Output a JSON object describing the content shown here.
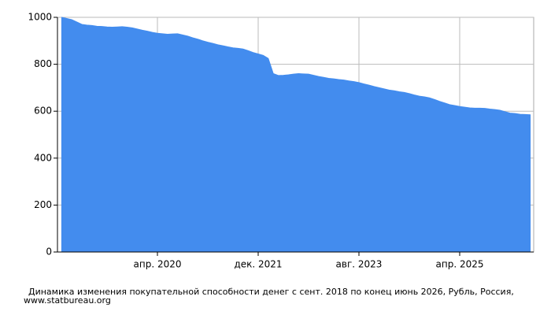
{
  "chart_data": {
    "type": "area",
    "caption": "Динамика изменения покупательной способности денег с сент. 2018 по конец июнь 2026, Рубль, Россия,",
    "source": "www.statbureau.org",
    "color": "#438cee",
    "grid": true,
    "categories": [
      null,
      null,
      null,
      null,
      null,
      null,
      null,
      null,
      null,
      null,
      null,
      null,
      null,
      null,
      null,
      null,
      null,
      null,
      null,
      "апр. 2020",
      null,
      null,
      null,
      null,
      null,
      null,
      null,
      null,
      null,
      null,
      null,
      null,
      null,
      null,
      null,
      null,
      null,
      null,
      null,
      "дек. 2021",
      null,
      null,
      null,
      null,
      null,
      null,
      null,
      null,
      null,
      null,
      null,
      null,
      null,
      null,
      null,
      null,
      null,
      null,
      null,
      "авг. 2023",
      null,
      null,
      null,
      null,
      null,
      null,
      null,
      null,
      null,
      null,
      null,
      null,
      null,
      null,
      null,
      null,
      null,
      null,
      null,
      "апр. 2025",
      null,
      null,
      null,
      null,
      null,
      null,
      null,
      null,
      null,
      null,
      null,
      null,
      null,
      null
    ],
    "values": [
      1000,
      995,
      990,
      980,
      970,
      967,
      965,
      962,
      961,
      959,
      958,
      959,
      960,
      958,
      955,
      950,
      945,
      941,
      936,
      932,
      930,
      928,
      929,
      930,
      925,
      920,
      913,
      907,
      900,
      894,
      889,
      883,
      879,
      874,
      870,
      868,
      865,
      858,
      850,
      844,
      838,
      825,
      760,
      752,
      753,
      755,
      758,
      760,
      759,
      758,
      753,
      748,
      744,
      740,
      738,
      735,
      733,
      729,
      726,
      722,
      716,
      711,
      705,
      700,
      695,
      690,
      687,
      683,
      680,
      675,
      669,
      664,
      661,
      657,
      650,
      642,
      635,
      628,
      624,
      620,
      617,
      614,
      613,
      613,
      612,
      609,
      607,
      604,
      598,
      592,
      590,
      587,
      586,
      585
    ],
    "ylim": [
      0,
      1000
    ],
    "yticks": [
      0,
      200,
      400,
      600,
      800,
      1000
    ]
  }
}
